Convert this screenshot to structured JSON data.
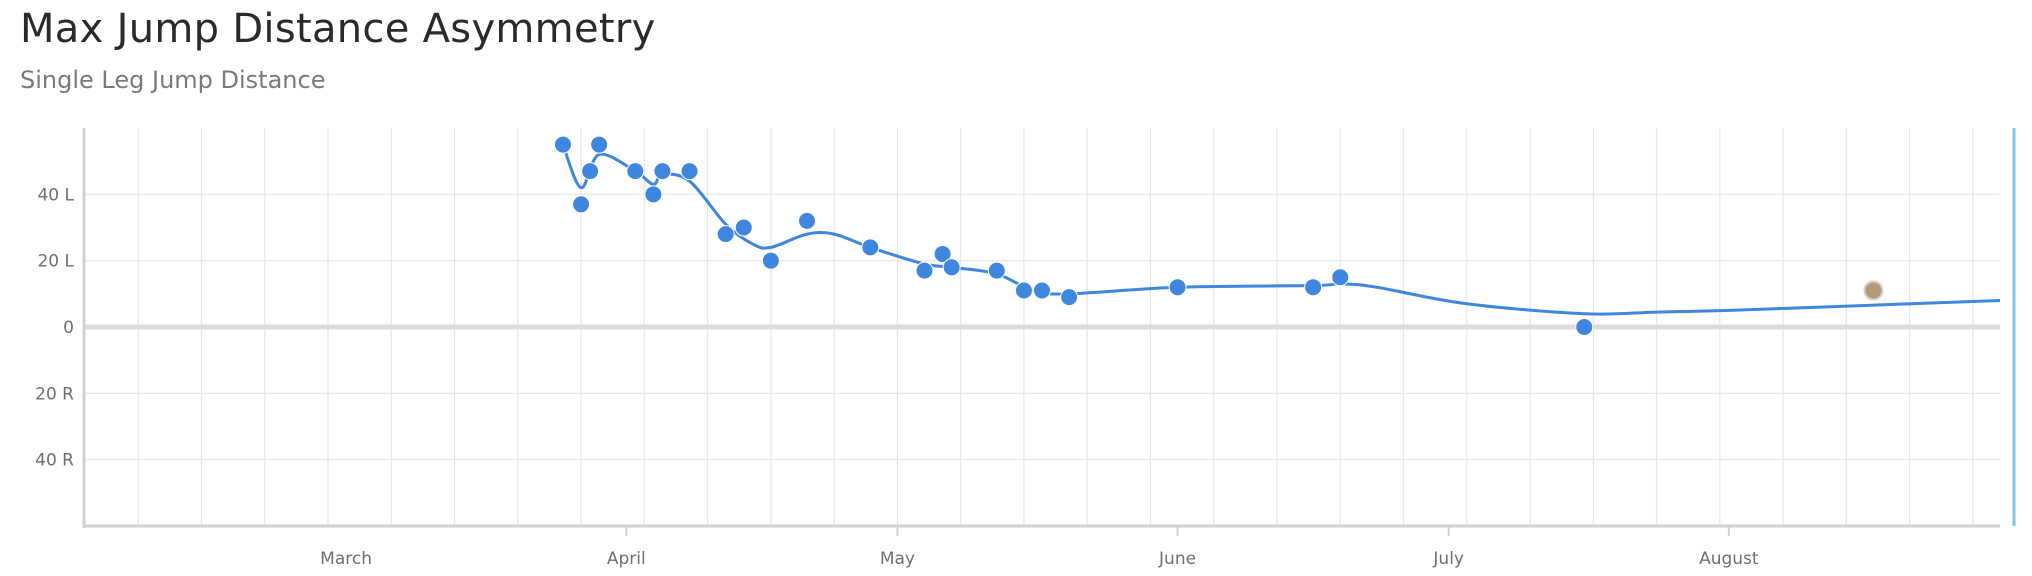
{
  "title": "Max Jump Distance Asymmetry",
  "subtitle": "Single Leg Jump Distance",
  "colors": {
    "series": "#3f86de",
    "highlight_point": "#b39a7a",
    "grid": "#e6e6e6",
    "zero_line": "#dcdcdc",
    "axis": "#d2d2d2",
    "right_edge": "#7ec8e3"
  },
  "chart_data": {
    "type": "line",
    "title": "Max Jump Distance Asymmetry",
    "subtitle": "Single Leg Jump Distance",
    "x_axis": {
      "type": "date",
      "range": [
        "2020-02-01",
        "2020-08-31"
      ],
      "month_labels": [
        {
          "label": "March",
          "date": "2020-03-01"
        },
        {
          "label": "April",
          "date": "2020-04-01"
        },
        {
          "label": "May",
          "date": "2020-05-01"
        },
        {
          "label": "June",
          "date": "2020-06-01"
        },
        {
          "label": "July",
          "date": "2020-07-01"
        },
        {
          "label": "August",
          "date": "2020-08-01"
        }
      ]
    },
    "y_axis": {
      "range": [
        -60,
        60
      ],
      "ticks": [
        {
          "value": 40,
          "label": "40 L"
        },
        {
          "value": 20,
          "label": "20 L"
        },
        {
          "value": 0,
          "label": "0"
        },
        {
          "value": -20,
          "label": "20 R"
        },
        {
          "value": -40,
          "label": "40 R"
        }
      ]
    },
    "grid": true,
    "series": [
      {
        "points": [
          {
            "x": "2020-03-25",
            "y": 55
          },
          {
            "x": "2020-03-27",
            "y": 37
          },
          {
            "x": "2020-03-28",
            "y": 47
          },
          {
            "x": "2020-03-29",
            "y": 55
          },
          {
            "x": "2020-04-02",
            "y": 47
          },
          {
            "x": "2020-04-04",
            "y": 40
          },
          {
            "x": "2020-04-05",
            "y": 47
          },
          {
            "x": "2020-04-08",
            "y": 47
          },
          {
            "x": "2020-04-12",
            "y": 28
          },
          {
            "x": "2020-04-14",
            "y": 30
          },
          {
            "x": "2020-04-17",
            "y": 20
          },
          {
            "x": "2020-04-21",
            "y": 32
          },
          {
            "x": "2020-04-28",
            "y": 24
          },
          {
            "x": "2020-05-04",
            "y": 17
          },
          {
            "x": "2020-05-06",
            "y": 22
          },
          {
            "x": "2020-05-07",
            "y": 18
          },
          {
            "x": "2020-05-12",
            "y": 17
          },
          {
            "x": "2020-05-15",
            "y": 11
          },
          {
            "x": "2020-05-17",
            "y": 11
          },
          {
            "x": "2020-05-20",
            "y": 9
          },
          {
            "x": "2020-06-01",
            "y": 12
          },
          {
            "x": "2020-06-16",
            "y": 12
          },
          {
            "x": "2020-06-19",
            "y": 15
          },
          {
            "x": "2020-07-16",
            "y": 0
          }
        ],
        "trend": [
          {
            "x": "2020-03-25",
            "y": 55
          },
          {
            "x": "2020-03-27",
            "y": 42
          },
          {
            "x": "2020-03-29",
            "y": 52
          },
          {
            "x": "2020-04-02",
            "y": 47
          },
          {
            "x": "2020-04-04",
            "y": 43
          },
          {
            "x": "2020-04-05",
            "y": 46
          },
          {
            "x": "2020-04-08",
            "y": 44
          },
          {
            "x": "2020-04-12",
            "y": 31
          },
          {
            "x": "2020-04-15",
            "y": 25
          },
          {
            "x": "2020-04-17",
            "y": 24
          },
          {
            "x": "2020-04-21",
            "y": 28
          },
          {
            "x": "2020-04-24",
            "y": 28
          },
          {
            "x": "2020-04-28",
            "y": 24
          },
          {
            "x": "2020-05-04",
            "y": 19
          },
          {
            "x": "2020-05-07",
            "y": 18
          },
          {
            "x": "2020-05-12",
            "y": 16
          },
          {
            "x": "2020-05-16",
            "y": 11
          },
          {
            "x": "2020-05-20",
            "y": 10
          },
          {
            "x": "2020-06-01",
            "y": 12
          },
          {
            "x": "2020-06-16",
            "y": 12.5
          },
          {
            "x": "2020-06-19",
            "y": 13
          },
          {
            "x": "2020-06-23",
            "y": 12
          },
          {
            "x": "2020-07-03",
            "y": 7
          },
          {
            "x": "2020-07-16",
            "y": 4
          },
          {
            "x": "2020-07-24",
            "y": 4.5
          },
          {
            "x": "2020-08-01",
            "y": 5
          },
          {
            "x": "2020-08-16",
            "y": 6.5
          },
          {
            "x": "2020-08-31",
            "y": 8
          }
        ]
      }
    ],
    "highlight_points": [
      {
        "x": "2020-08-17",
        "y": 11
      }
    ]
  }
}
